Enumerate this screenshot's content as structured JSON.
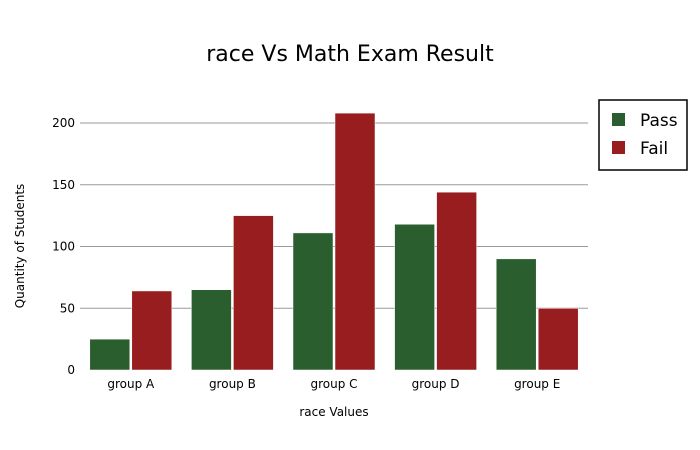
{
  "chart_data": {
    "type": "bar",
    "title": "race Vs Math Exam Result",
    "xlabel": "race Values",
    "ylabel": "Quantity of Students",
    "categories": [
      "group A",
      "group B",
      "group C",
      "group D",
      "group E"
    ],
    "series": [
      {
        "name": "Pass",
        "values": [
          25,
          65,
          111,
          118,
          90
        ],
        "color": "#2b5e2f"
      },
      {
        "name": "Fail",
        "values": [
          64,
          125,
          208,
          144,
          50
        ],
        "color": "#981d1f"
      }
    ],
    "ylim": [
      0,
      225
    ],
    "yticks": [
      0,
      50,
      100,
      150,
      200
    ],
    "grid": true,
    "legend_position": "top-right"
  }
}
